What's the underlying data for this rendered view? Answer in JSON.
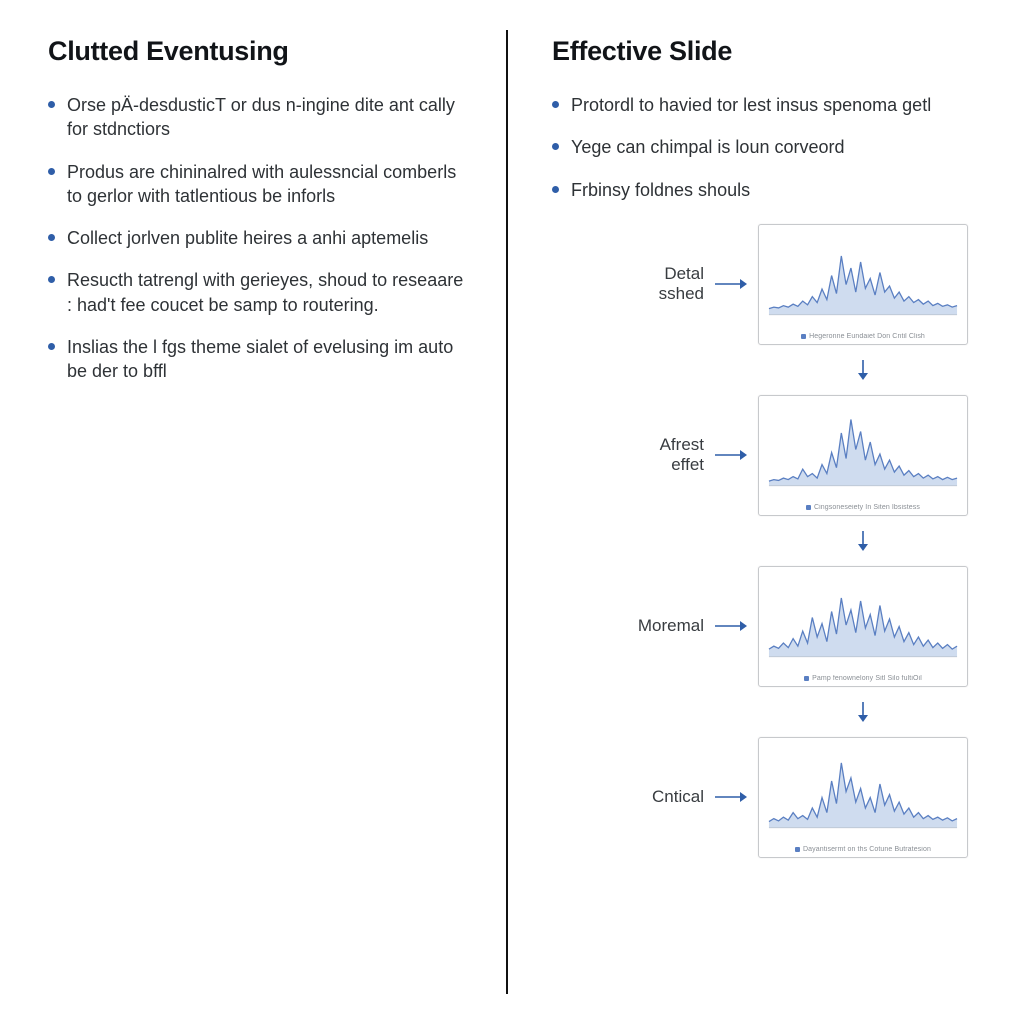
{
  "colors": {
    "bullet": "#2f5ea8",
    "text": "#2e3236",
    "heading": "#111418",
    "divider": "#111111",
    "card_border": "#c7c9cc",
    "chart_line": "#5a7fc2",
    "chart_fill": "#c7d6ec",
    "axis": "#b9bdc2",
    "arrow": "#2f5ea8",
    "caption": "#8a8f95"
  },
  "left": {
    "heading": "Clutted Eventusing",
    "bullets": [
      "Orse pÄ-desdusticT or dus n-ingine dite ant cally for stdnctiors",
      "Produs are chininalred with aulessncial comberls to gerlor with tatlentious be inforls",
      "Collect jorlven publite heires a anhi aptemelis",
      "Resucth tatrengl with gerieyes, shoud to reseaare : had't fee coucet be samp to routering.",
      "Inslias the l fgs theme sialet of evelusing im auto be der to bffl"
    ]
  },
  "right": {
    "heading": "Effective Slide",
    "bullets": [
      "Protordl to havied tor lest insus spenoma getl",
      "Yege can chimpal is loun corveord",
      "Frbinsy foldnes shouls"
    ],
    "cards": [
      {
        "label": "Detal\nsshed",
        "caption": "Hegeronne Eundaiet Don Cntil Clish",
        "series": [
          8,
          10,
          9,
          12,
          10,
          14,
          11,
          18,
          13,
          24,
          16,
          34,
          20,
          52,
          28,
          78,
          40,
          62,
          30,
          70,
          35,
          48,
          26,
          56,
          30,
          38,
          22,
          30,
          18,
          24,
          16,
          20,
          14,
          18,
          12,
          15,
          11,
          13,
          10,
          12
        ],
        "ymax": 100
      },
      {
        "label": "Afrest\neffet",
        "caption": "Cingsoneseiety In Siten Ibsistess",
        "series": [
          6,
          8,
          7,
          10,
          8,
          12,
          9,
          22,
          12,
          16,
          10,
          28,
          16,
          44,
          24,
          70,
          36,
          88,
          48,
          72,
          34,
          58,
          28,
          42,
          22,
          34,
          18,
          26,
          14,
          20,
          12,
          16,
          10,
          14,
          9,
          12,
          8,
          11,
          8,
          10
        ],
        "ymax": 100
      },
      {
        "label": "Moremal",
        "caption": "Pamp fenownelony Sitl Silo fultiOil",
        "series": [
          10,
          14,
          11,
          18,
          12,
          24,
          14,
          34,
          18,
          52,
          26,
          44,
          20,
          60,
          30,
          78,
          42,
          62,
          32,
          74,
          38,
          56,
          28,
          68,
          34,
          50,
          26,
          40,
          20,
          32,
          16,
          26,
          14,
          22,
          12,
          18,
          11,
          16,
          10,
          14
        ],
        "ymax": 100
      },
      {
        "label": "Cntical",
        "caption": "Dayantisermt on ths Cotune Butratesion",
        "series": [
          8,
          12,
          9,
          14,
          10,
          20,
          12,
          16,
          11,
          26,
          14,
          40,
          20,
          62,
          32,
          86,
          48,
          66,
          34,
          52,
          26,
          40,
          20,
          58,
          30,
          44,
          22,
          34,
          18,
          26,
          14,
          20,
          12,
          16,
          11,
          14,
          10,
          13,
          9,
          12
        ],
        "ymax": 100
      }
    ]
  },
  "arrow": {
    "h_len": 34,
    "v_len": 22
  }
}
